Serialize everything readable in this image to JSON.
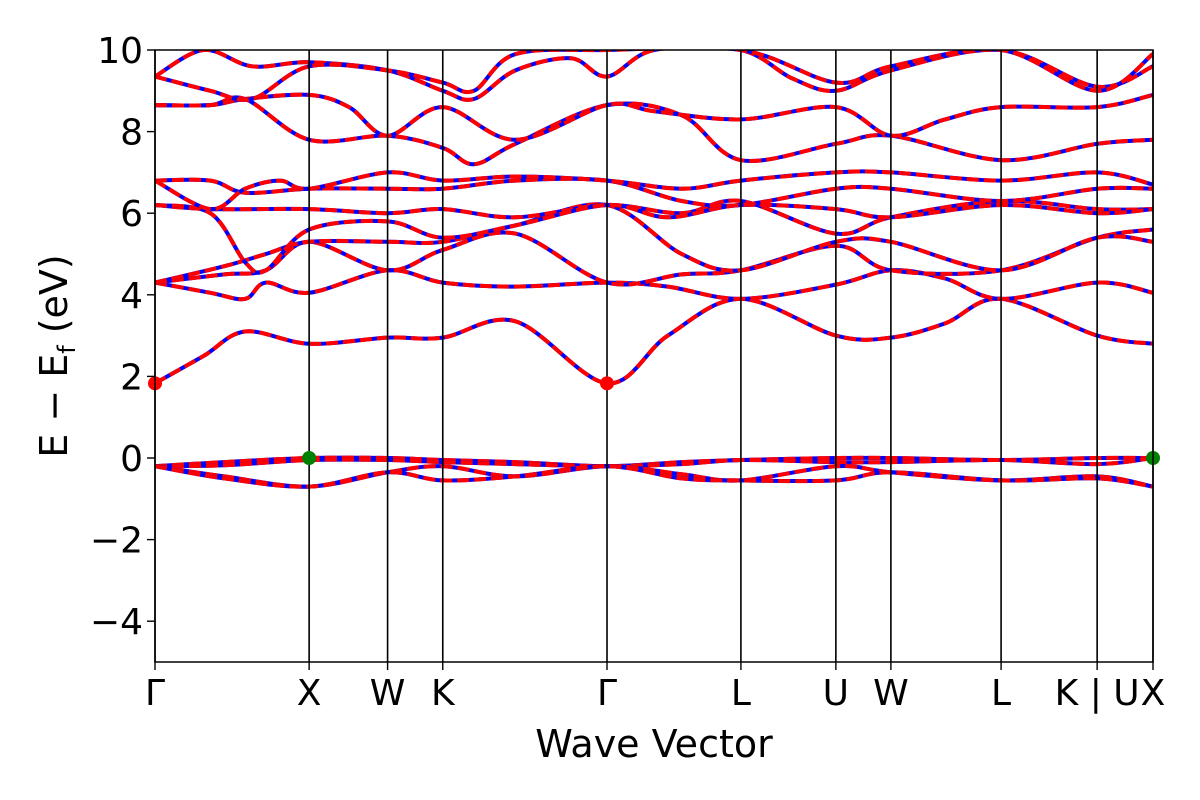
{
  "chart_data": {
    "type": "line",
    "title": "",
    "xlabel": "Wave Vector",
    "ylabel": {
      "main": "E − E",
      "subscript": "f",
      "unit": "(eV)"
    },
    "ylim": [
      -5,
      10
    ],
    "yticks": [
      -4,
      -2,
      0,
      2,
      4,
      6,
      8,
      10
    ],
    "ytick_labels": [
      "−4",
      "−2",
      "0",
      "2",
      "4",
      "6",
      "8",
      "10"
    ],
    "grid": false,
    "legend": "none",
    "xlim": [
      0,
      7.2
    ],
    "kpoints": [
      {
        "label": "Γ",
        "x": 0.0
      },
      {
        "label": "X",
        "x": 1.112
      },
      {
        "label": "W",
        "x": 1.678
      },
      {
        "label": "K",
        "x": 2.076
      },
      {
        "label": "Γ",
        "x": 3.261
      },
      {
        "label": "L",
        "x": 4.227
      },
      {
        "label": "U",
        "x": 4.912
      },
      {
        "label": "W",
        "x": 5.309
      },
      {
        "label": "L",
        "x": 6.104
      },
      {
        "label": "K | U",
        "x": 6.797
      },
      {
        "label": "X",
        "x": 7.2
      }
    ],
    "colors": {
      "band_solid": "#0000ff",
      "band_dashed": "#ff0000",
      "cbm_marker": "#ff0000",
      "vbm_marker": "#008000"
    },
    "markers": [
      {
        "kind": "CBM",
        "x": 0.0,
        "y": 1.83
      },
      {
        "kind": "CBM",
        "x": 3.261,
        "y": 1.83
      },
      {
        "kind": "VBM",
        "x": 1.112,
        "y": 0.0
      },
      {
        "kind": "VBM",
        "x": 7.2,
        "y": 0.0
      }
    ],
    "series": [
      {
        "values": [
          [
            0,
            -0.2
          ],
          [
            0.5,
            -0.1
          ],
          [
            1.112,
            0.0
          ],
          [
            1.678,
            0.0
          ],
          [
            2.076,
            -0.05
          ],
          [
            2.6,
            -0.1
          ],
          [
            3.261,
            -0.2
          ],
          [
            3.8,
            -0.1
          ],
          [
            4.227,
            -0.05
          ],
          [
            4.912,
            0.0
          ],
          [
            5.309,
            0.0
          ],
          [
            6.104,
            -0.05
          ],
          [
            6.797,
            0.0
          ],
          [
            7.2,
            0.0
          ]
        ]
      },
      {
        "values": [
          [
            0,
            -0.2
          ],
          [
            0.5,
            -0.18
          ],
          [
            1.112,
            -0.05
          ],
          [
            1.678,
            -0.05
          ],
          [
            2.076,
            -0.1
          ],
          [
            2.6,
            -0.15
          ],
          [
            3.261,
            -0.2
          ],
          [
            3.8,
            -0.15
          ],
          [
            4.227,
            -0.05
          ],
          [
            4.912,
            -0.1
          ],
          [
            5.309,
            -0.1
          ],
          [
            6.104,
            -0.05
          ],
          [
            6.797,
            -0.15
          ],
          [
            7.2,
            0.0
          ]
        ]
      },
      {
        "values": [
          [
            0,
            -0.2
          ],
          [
            0.5,
            -0.45
          ],
          [
            1.112,
            -0.7
          ],
          [
            1.678,
            -0.35
          ],
          [
            2.076,
            -0.2
          ],
          [
            2.6,
            -0.45
          ],
          [
            3.261,
            -0.2
          ],
          [
            3.8,
            -0.4
          ],
          [
            4.227,
            -0.55
          ],
          [
            4.912,
            -0.2
          ],
          [
            5.309,
            -0.35
          ],
          [
            6.104,
            -0.55
          ],
          [
            6.797,
            -0.45
          ],
          [
            7.2,
            -0.7
          ]
        ]
      },
      {
        "values": [
          [
            0,
            -0.2
          ],
          [
            0.5,
            -0.5
          ],
          [
            1.112,
            -0.7
          ],
          [
            1.678,
            -0.35
          ],
          [
            2.076,
            -0.55
          ],
          [
            2.6,
            -0.45
          ],
          [
            3.261,
            -0.2
          ],
          [
            3.8,
            -0.5
          ],
          [
            4.227,
            -0.55
          ],
          [
            4.912,
            -0.55
          ],
          [
            5.309,
            -0.35
          ],
          [
            6.104,
            -0.55
          ],
          [
            6.797,
            -0.5
          ],
          [
            7.2,
            -0.7
          ]
        ]
      },
      {
        "values": [
          [
            0,
            1.83
          ],
          [
            0.35,
            2.5
          ],
          [
            0.65,
            3.1
          ],
          [
            1.112,
            2.8
          ],
          [
            1.678,
            2.95
          ],
          [
            2.076,
            2.95
          ],
          [
            2.6,
            3.35
          ],
          [
            3.261,
            1.83
          ],
          [
            3.7,
            3.0
          ],
          [
            4.227,
            3.9
          ],
          [
            4.912,
            3.0
          ],
          [
            5.309,
            2.95
          ],
          [
            5.7,
            3.3
          ],
          [
            6.104,
            3.9
          ],
          [
            6.797,
            3.0
          ],
          [
            7.2,
            2.8
          ]
        ]
      },
      {
        "values": [
          [
            0,
            4.3
          ],
          [
            0.4,
            4.05
          ],
          [
            0.65,
            3.9
          ],
          [
            0.8,
            4.3
          ],
          [
            1.112,
            4.05
          ],
          [
            1.678,
            4.6
          ],
          [
            2.076,
            4.3
          ],
          [
            2.6,
            4.2
          ],
          [
            3.261,
            4.3
          ],
          [
            3.7,
            4.2
          ],
          [
            4.227,
            3.9
          ],
          [
            4.912,
            4.25
          ],
          [
            5.309,
            4.6
          ],
          [
            5.7,
            4.4
          ],
          [
            6.104,
            3.9
          ],
          [
            6.797,
            4.3
          ],
          [
            7.2,
            4.05
          ]
        ]
      },
      {
        "values": [
          [
            0,
            4.3
          ],
          [
            0.5,
            4.5
          ],
          [
            0.8,
            4.6
          ],
          [
            1.112,
            5.3
          ],
          [
            1.678,
            4.6
          ],
          [
            2.076,
            5.1
          ],
          [
            2.6,
            5.5
          ],
          [
            3.261,
            4.3
          ],
          [
            3.8,
            4.5
          ],
          [
            4.227,
            4.6
          ],
          [
            4.912,
            5.2
          ],
          [
            5.309,
            4.6
          ],
          [
            6.104,
            4.6
          ],
          [
            6.797,
            5.4
          ],
          [
            7.2,
            5.6
          ]
        ]
      },
      {
        "values": [
          [
            0,
            4.3
          ],
          [
            0.5,
            4.7
          ],
          [
            0.8,
            5.0
          ],
          [
            1.112,
            5.3
          ],
          [
            1.678,
            5.3
          ],
          [
            2.076,
            5.3
          ],
          [
            2.6,
            5.7
          ],
          [
            3.261,
            6.2
          ],
          [
            3.8,
            5.0
          ],
          [
            4.227,
            4.6
          ],
          [
            4.912,
            5.3
          ],
          [
            5.309,
            5.3
          ],
          [
            6.104,
            4.6
          ],
          [
            6.797,
            5.4
          ],
          [
            7.2,
            5.3
          ]
        ]
      },
      {
        "values": [
          [
            0,
            6.2
          ],
          [
            0.4,
            6.1
          ],
          [
            1.112,
            6.1
          ],
          [
            1.678,
            6.0
          ],
          [
            2.076,
            6.1
          ],
          [
            2.6,
            5.9
          ],
          [
            3.261,
            6.2
          ],
          [
            3.8,
            6.0
          ],
          [
            4.227,
            6.3
          ],
          [
            4.912,
            5.5
          ],
          [
            5.309,
            5.9
          ],
          [
            6.104,
            6.3
          ],
          [
            6.797,
            6.1
          ],
          [
            7.2,
            6.1
          ]
        ]
      },
      {
        "values": [
          [
            0,
            6.2
          ],
          [
            0.4,
            6.0
          ],
          [
            0.65,
            4.8
          ],
          [
            0.8,
            4.6
          ],
          [
            1.112,
            5.6
          ],
          [
            1.678,
            5.8
          ],
          [
            2.076,
            5.4
          ],
          [
            2.6,
            5.7
          ],
          [
            3.261,
            6.2
          ],
          [
            3.7,
            5.9
          ],
          [
            4.227,
            6.2
          ],
          [
            4.912,
            6.1
          ],
          [
            5.309,
            5.9
          ],
          [
            6.104,
            6.2
          ],
          [
            6.797,
            6.0
          ],
          [
            7.2,
            6.1
          ]
        ]
      },
      {
        "values": [
          [
            0,
            6.8
          ],
          [
            0.4,
            6.8
          ],
          [
            0.65,
            6.5
          ],
          [
            1.112,
            6.6
          ],
          [
            1.678,
            6.6
          ],
          [
            2.076,
            6.6
          ],
          [
            2.6,
            6.8
          ],
          [
            3.261,
            6.8
          ],
          [
            3.8,
            6.3
          ],
          [
            4.227,
            6.2
          ],
          [
            4.912,
            6.6
          ],
          [
            5.309,
            6.6
          ],
          [
            6.104,
            6.3
          ],
          [
            6.797,
            6.6
          ],
          [
            7.2,
            6.6
          ]
        ]
      },
      {
        "values": [
          [
            0,
            6.8
          ],
          [
            0.4,
            6.1
          ],
          [
            0.65,
            6.6
          ],
          [
            0.9,
            6.8
          ],
          [
            1.112,
            6.6
          ],
          [
            1.678,
            7.0
          ],
          [
            2.076,
            6.8
          ],
          [
            2.6,
            6.9
          ],
          [
            3.261,
            6.8
          ],
          [
            3.8,
            6.6
          ],
          [
            4.227,
            6.8
          ],
          [
            4.912,
            7.0
          ],
          [
            5.309,
            7.0
          ],
          [
            6.104,
            6.8
          ],
          [
            6.797,
            7.0
          ],
          [
            7.2,
            6.7
          ]
        ]
      },
      {
        "values": [
          [
            0,
            8.65
          ],
          [
            0.4,
            8.65
          ],
          [
            0.65,
            8.8
          ],
          [
            1.112,
            7.8
          ],
          [
            1.678,
            7.9
          ],
          [
            2.076,
            7.6
          ],
          [
            2.3,
            7.2
          ],
          [
            2.6,
            7.7
          ],
          [
            3.261,
            8.65
          ],
          [
            3.8,
            8.4
          ],
          [
            4.227,
            7.3
          ],
          [
            4.912,
            7.7
          ],
          [
            5.309,
            7.9
          ],
          [
            6.104,
            7.3
          ],
          [
            6.797,
            7.7
          ],
          [
            7.2,
            7.8
          ]
        ]
      },
      {
        "values": [
          [
            0,
            8.65
          ],
          [
            0.4,
            8.65
          ],
          [
            0.65,
            8.8
          ],
          [
            1.112,
            8.9
          ],
          [
            1.4,
            8.6
          ],
          [
            1.678,
            7.9
          ],
          [
            2.076,
            8.6
          ],
          [
            2.6,
            7.8
          ],
          [
            3.261,
            8.65
          ],
          [
            3.6,
            8.5
          ],
          [
            4.227,
            8.3
          ],
          [
            4.912,
            8.6
          ],
          [
            5.309,
            7.9
          ],
          [
            5.7,
            8.3
          ],
          [
            6.104,
            8.6
          ],
          [
            6.797,
            8.6
          ],
          [
            7.2,
            8.9
          ]
        ]
      },
      {
        "values": [
          [
            0,
            9.35
          ],
          [
            0.35,
            10.0
          ],
          [
            0.7,
            9.6
          ],
          [
            1.112,
            9.7
          ],
          [
            1.678,
            9.5
          ],
          [
            2.076,
            9.0
          ],
          [
            2.3,
            8.8
          ],
          [
            2.6,
            9.5
          ],
          [
            3.0,
            9.8
          ],
          [
            3.261,
            9.35
          ],
          [
            3.6,
            10.0
          ],
          [
            4.227,
            10.0
          ],
          [
            4.6,
            9.3
          ],
          [
            4.912,
            9.0
          ],
          [
            5.309,
            9.5
          ],
          [
            6.104,
            10.0
          ],
          [
            6.797,
            9.1
          ],
          [
            7.2,
            9.6
          ]
        ]
      },
      {
        "values": [
          [
            0,
            9.35
          ],
          [
            0.4,
            9.0
          ],
          [
            0.7,
            8.8
          ],
          [
            1.112,
            9.6
          ],
          [
            1.678,
            9.5
          ],
          [
            2.076,
            9.2
          ],
          [
            2.3,
            9.0
          ],
          [
            2.6,
            9.9
          ],
          [
            3.261,
            10.0
          ],
          [
            4.227,
            10.0
          ],
          [
            4.912,
            9.2
          ],
          [
            5.309,
            9.6
          ],
          [
            6.104,
            10.0
          ],
          [
            6.797,
            9.0
          ],
          [
            7.2,
            9.9
          ]
        ]
      }
    ]
  }
}
